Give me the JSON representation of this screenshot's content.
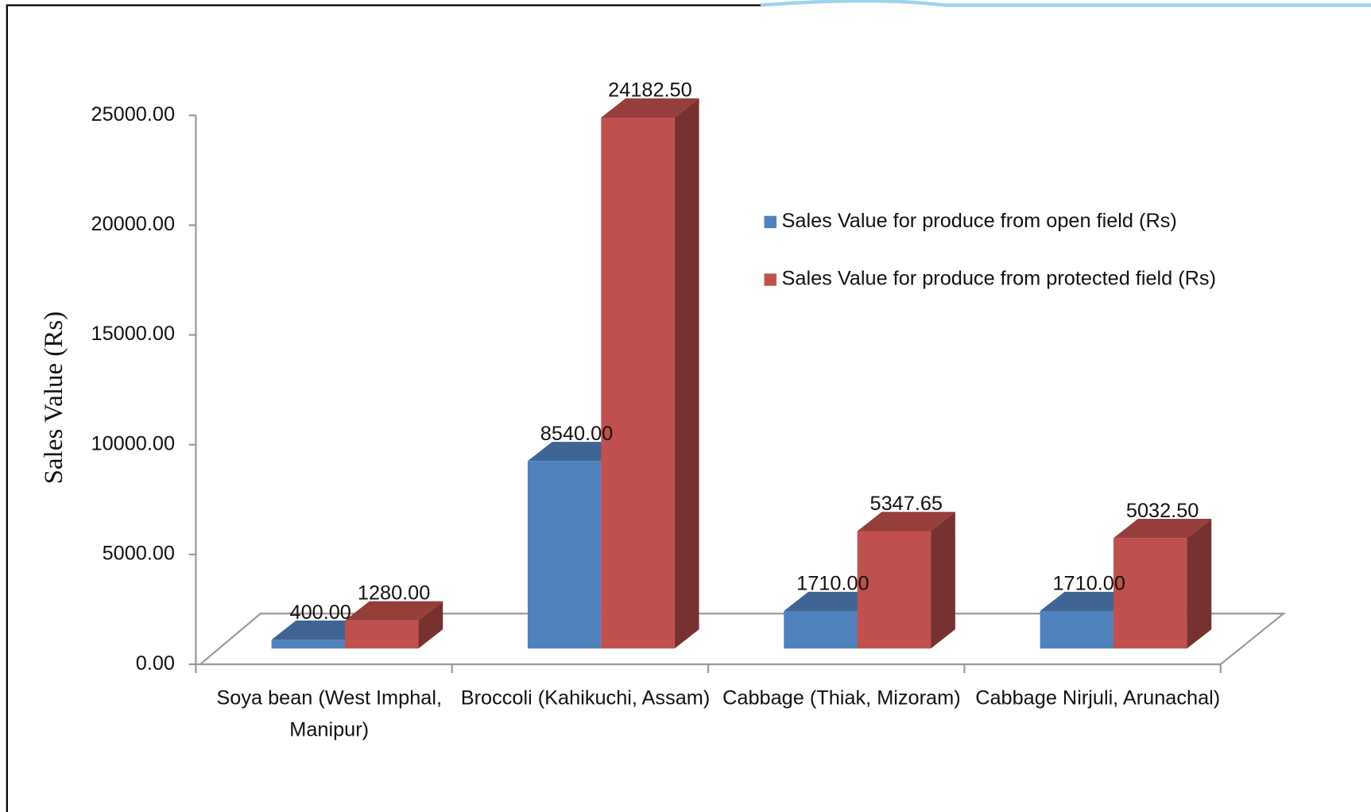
{
  "chart_data": {
    "type": "bar3d",
    "y_label": "Sales Value (Rs)",
    "categories": [
      "Soya bean (West Imphal, Manipur)",
      "Broccoli (Kahikuchi, Assam)",
      "Cabbage (Thiak, Mizoram)",
      "Cabbage Nirjuli, Arunachal)"
    ],
    "series": [
      {
        "name": "Sales Value for produce from open field (Rs)",
        "color": "#4f81bd",
        "values": [
          400,
          8540,
          1710,
          1710
        ],
        "value_labels": [
          "400.00",
          "8540.00",
          "1710.00",
          "1710.00"
        ]
      },
      {
        "name": "Sales Value for produce from protected field (Rs)",
        "color": "#c0504d",
        "values": [
          1280,
          24182.5,
          5347.65,
          5032.5
        ],
        "value_labels": [
          "1280.00",
          "24182.50",
          "5347.65",
          "5032.50"
        ]
      }
    ],
    "ylim": [
      0,
      25000
    ],
    "yticks": [
      {
        "value": 0,
        "label": "0.00"
      },
      {
        "value": 5000,
        "label": "5000.00"
      },
      {
        "value": 10000,
        "label": "10000.00"
      },
      {
        "value": 15000,
        "label": "15000.00"
      },
      {
        "value": 20000,
        "label": "20000.00"
      },
      {
        "value": 25000,
        "label": "25000.00"
      }
    ],
    "legend": "right"
  }
}
